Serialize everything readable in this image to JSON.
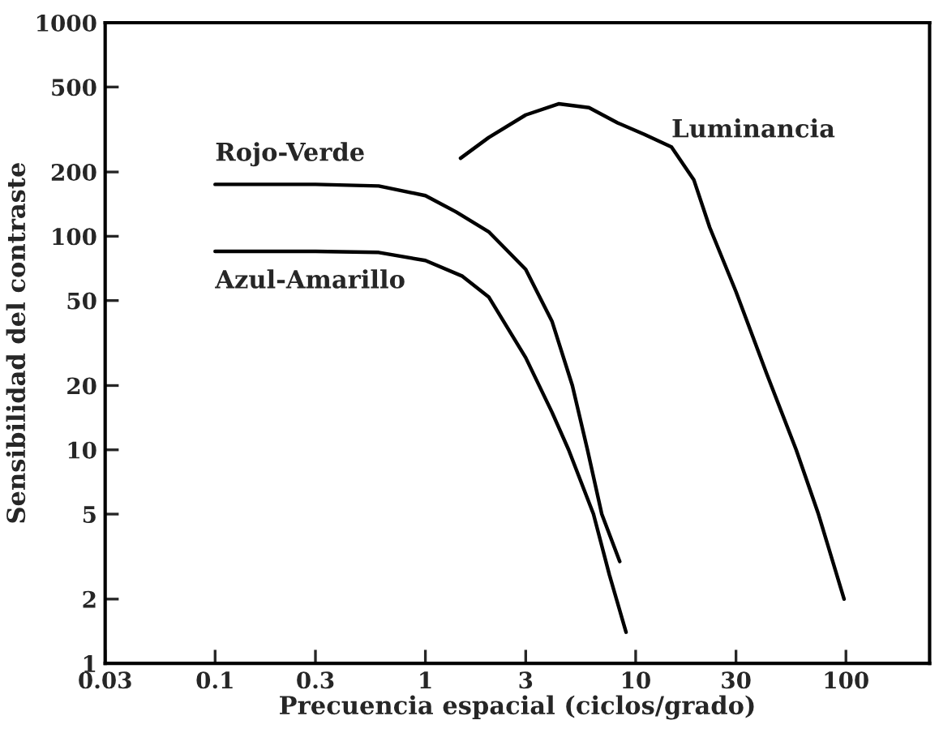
{
  "chart_data": {
    "type": "line",
    "xlabel": "Precuencia espacial (ciclos/grado)",
    "ylabel": "Sensibilidad del contraste",
    "log": "xy",
    "grid": false,
    "legend": false,
    "marker": "none",
    "line_style": "solid",
    "xlim": [
      0.03,
      250
    ],
    "xticks": [
      0.03,
      0.1,
      0.3,
      1,
      3,
      10,
      30,
      100
    ],
    "ylim": [
      1,
      1000
    ],
    "yticks": [
      1,
      2,
      5,
      10,
      20,
      50,
      100,
      200,
      500,
      1000
    ],
    "series": [
      {
        "name": "Rojo-Verde",
        "color": "#000000",
        "x": [
          0.1,
          0.3,
          0.6,
          1,
          1.4,
          2,
          3,
          4,
          5,
          5.9,
          6.9,
          8.4
        ],
        "values": [
          175,
          175,
          172,
          155,
          130,
          105,
          70,
          40,
          20,
          10,
          5,
          3
        ]
      },
      {
        "name": "Azul-Amarillo",
        "color": "#000000",
        "x": [
          0.1,
          0.3,
          0.6,
          1,
          1.5,
          2,
          3,
          4,
          4.8,
          6.3,
          7.5,
          9
        ],
        "values": [
          85,
          85,
          84,
          77,
          65,
          52,
          27,
          15,
          10,
          5,
          2.6,
          1.4
        ]
      },
      {
        "name": "Luminancia",
        "color": "#000000",
        "x": [
          1.47,
          2,
          3,
          4.3,
          6,
          8.2,
          11,
          14.8,
          18.9,
          22.5,
          30,
          42,
          58,
          74,
          98
        ],
        "values": [
          232,
          290,
          370,
          417,
          400,
          340,
          300,
          262,
          184,
          110,
          55,
          22.7,
          10,
          5,
          2
        ]
      }
    ]
  }
}
